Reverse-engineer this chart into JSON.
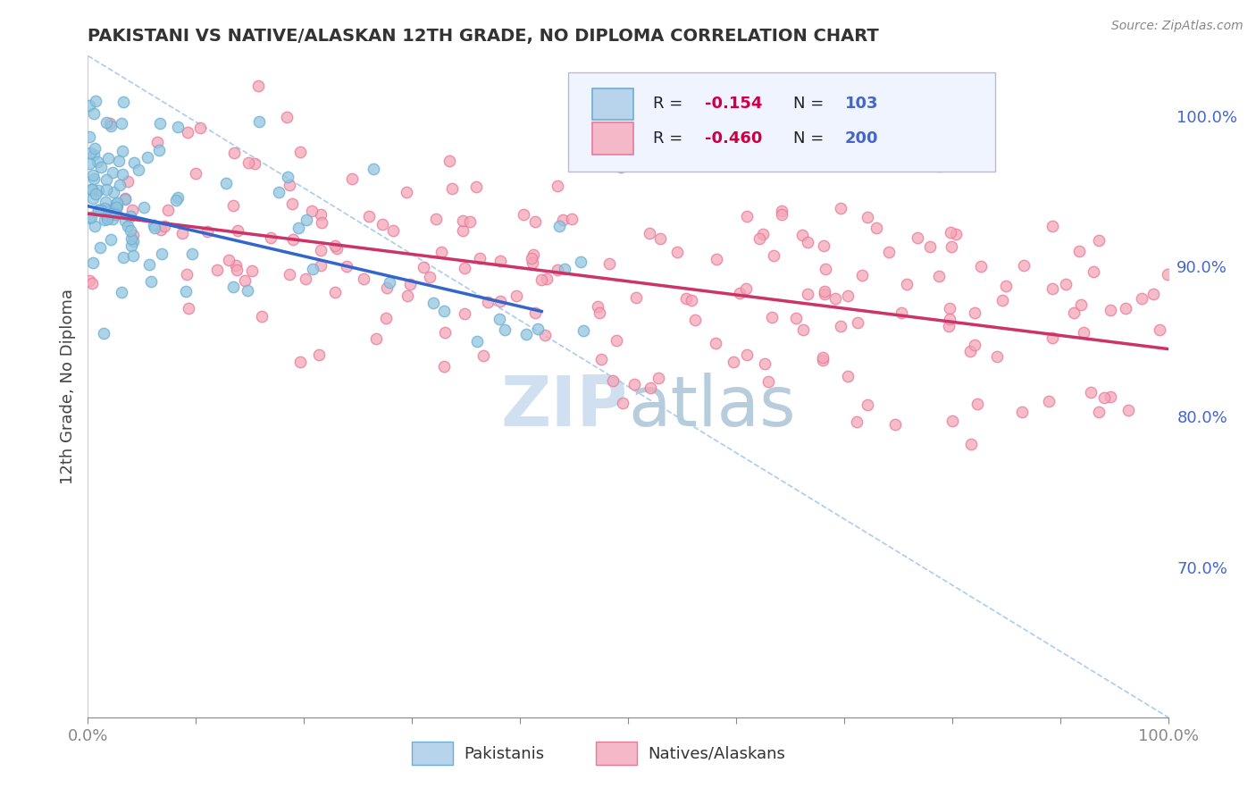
{
  "title": "PAKISTANI VS NATIVE/ALASKAN 12TH GRADE, NO DIPLOMA CORRELATION CHART",
  "source": "Source: ZipAtlas.com",
  "ylabel": "12th Grade, No Diploma",
  "ylabel_right_labels": [
    "100.0%",
    "90.0%",
    "80.0%",
    "70.0%"
  ],
  "ylabel_right_values": [
    1.0,
    0.9,
    0.8,
    0.7
  ],
  "pakistani_color": "#92c5de",
  "native_color": "#f4a6b8",
  "pakistani_edge_color": "#6baed6",
  "native_edge_color": "#e87a99",
  "pakistani_line_color": "#3366cc",
  "native_line_color": "#cc3366",
  "dashed_line_color": "#aaccee",
  "watermark_color": "#ccddf0",
  "background_color": "#ffffff",
  "grid_color": "#dddddd",
  "title_color": "#333333",
  "axis_tick_color": "#4466cc",
  "legend_text_color": "#333333",
  "legend_r_color": "#cc0044",
  "legend_n_color": "#4466cc",
  "marker_size": 80,
  "xlim": [
    0.0,
    1.0
  ],
  "ylim": [
    0.6,
    1.04
  ],
  "pak_line_x": [
    0.0,
    0.42
  ],
  "pak_line_y": [
    0.94,
    0.87
  ],
  "nat_line_x": [
    0.0,
    1.0
  ],
  "nat_line_y": [
    0.935,
    0.845
  ],
  "dash_line_x": [
    0.0,
    1.0
  ],
  "dash_line_y": [
    1.04,
    0.6
  ],
  "xtick_positions": [
    0.0,
    0.1,
    0.2,
    0.3,
    0.4,
    0.5,
    0.6,
    0.7,
    0.8,
    0.9,
    1.0
  ],
  "xtick_labels": [
    "0.0%",
    "",
    "",
    "",
    "",
    "",
    "",
    "",
    "",
    "",
    "100.0%"
  ]
}
